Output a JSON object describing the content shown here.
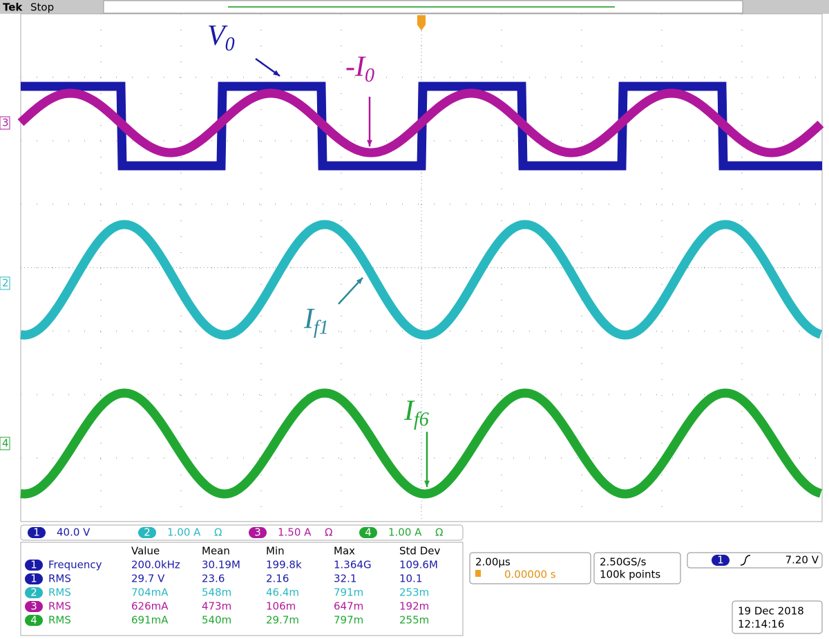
{
  "header": {
    "brand": "Tek",
    "status": "Stop"
  },
  "annotations": [
    {
      "base": "V",
      "sub": "0"
    },
    {
      "base": "-I",
      "sub": "0"
    },
    {
      "base": "I",
      "sub": "f1"
    },
    {
      "base": "I",
      "sub": "f6"
    }
  ],
  "channel_markers": [
    "3",
    "2",
    "4"
  ],
  "channels": [
    {
      "num": "1",
      "scale": "40.0 V"
    },
    {
      "num": "2",
      "scale": "1.00 A",
      "unit": "Ω"
    },
    {
      "num": "3",
      "scale": "1.50 A",
      "unit": "Ω"
    },
    {
      "num": "4",
      "scale": "1.00 A",
      "unit": "Ω"
    }
  ],
  "measurements": {
    "columns": [
      "Value",
      "Mean",
      "Min",
      "Max",
      "Std Dev"
    ],
    "rows": [
      {
        "ch": "1",
        "label": "Frequency",
        "cells": [
          "200.0kHz",
          "30.19M",
          "199.8k",
          "1.364G",
          "109.6M"
        ]
      },
      {
        "ch": "1",
        "label": "RMS",
        "cells": [
          "29.7 V",
          "23.6",
          "2.16",
          "32.1",
          "10.1"
        ]
      },
      {
        "ch": "2",
        "label": "RMS",
        "cells": [
          "704mA",
          "548m",
          "46.4m",
          "791m",
          "253m"
        ]
      },
      {
        "ch": "3",
        "label": "RMS",
        "cells": [
          "626mA",
          "473m",
          "106m",
          "647m",
          "192m"
        ]
      },
      {
        "ch": "4",
        "label": "RMS",
        "cells": [
          "691mA",
          "540m",
          "29.7m",
          "797m",
          "255m"
        ]
      }
    ]
  },
  "timebase": {
    "scale": "2.00µs",
    "delay": "0.00000 s"
  },
  "acquisition": {
    "rate": "2.50GS/s",
    "length": "100k points"
  },
  "trigger": {
    "ch": "1",
    "level": "7.20 V"
  },
  "datetime": {
    "date": "19 Dec 2018",
    "time": "12:14:16"
  }
}
